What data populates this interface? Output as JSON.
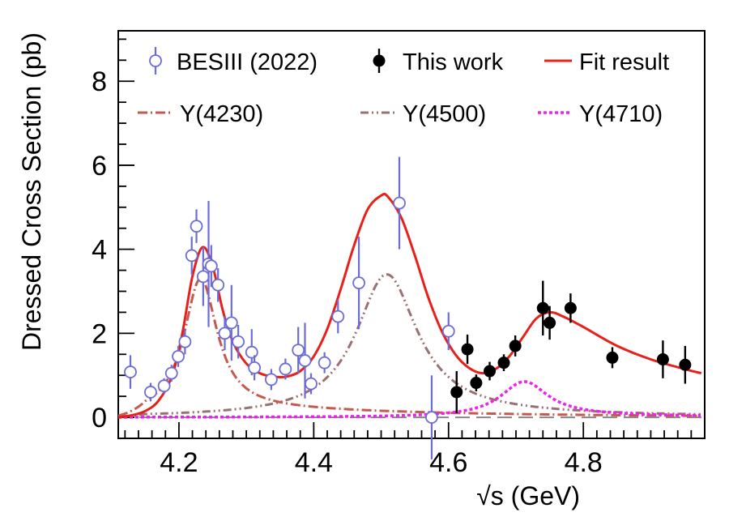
{
  "chart_data": {
    "type": "scatter",
    "title": "",
    "xlabel": "√s (GeV)",
    "ylabel": "Dressed Cross Section (pb)",
    "xlim": [
      4.11,
      4.98
    ],
    "ylim": [
      -0.5,
      9.2
    ],
    "x_ticks": [
      4.2,
      4.4,
      4.6,
      4.8
    ],
    "x_tick_labels": [
      "4.2",
      "4.4",
      "4.6",
      "4.8"
    ],
    "y_ticks": [
      0,
      2,
      4,
      6,
      8
    ],
    "y_tick_labels": [
      "0",
      "2",
      "4",
      "6",
      "8"
    ],
    "legend": {
      "placement": "top",
      "entries": [
        {
          "key": "besiii",
          "label": "BESIII (2022)"
        },
        {
          "key": "thiswork",
          "label": "This work"
        },
        {
          "key": "fit",
          "label": "Fit result"
        },
        {
          "key": "y4230",
          "label": "Y(4230)"
        },
        {
          "key": "y4500",
          "label": "Y(4500)"
        },
        {
          "key": "y4710",
          "label": "Y(4710)"
        }
      ]
    },
    "colors": {
      "besiii": "#6c6cd8",
      "thiswork": "#000000",
      "fit": "#e8201a",
      "y4230": "#c45a4e",
      "y4500": "#9a7070",
      "y4710": "#ee22ee",
      "zero_line": "#888888"
    },
    "points": {
      "besiii": [
        {
          "x": 4.128,
          "y": 1.08,
          "err": 0.4
        },
        {
          "x": 4.158,
          "y": 0.6,
          "err": 0.22
        },
        {
          "x": 4.178,
          "y": 0.75,
          "err": 0.18
        },
        {
          "x": 4.189,
          "y": 1.05,
          "err": 0.2
        },
        {
          "x": 4.199,
          "y": 1.45,
          "err": 0.25
        },
        {
          "x": 4.209,
          "y": 1.8,
          "err": 0.3
        },
        {
          "x": 4.219,
          "y": 3.85,
          "err": 0.45
        },
        {
          "x": 4.226,
          "y": 4.55,
          "err": 0.4
        },
        {
          "x": 4.236,
          "y": 3.35,
          "err": 0.7
        },
        {
          "x": 4.244,
          "y": 3.65,
          "err": 1.5
        },
        {
          "x": 4.248,
          "y": 3.6,
          "err": 0.5
        },
        {
          "x": 4.258,
          "y": 3.15,
          "err": 0.4
        },
        {
          "x": 4.268,
          "y": 2.0,
          "err": 0.4
        },
        {
          "x": 4.278,
          "y": 2.25,
          "err": 0.9
        },
        {
          "x": 4.288,
          "y": 1.8,
          "err": 0.4
        },
        {
          "x": 4.308,
          "y": 1.55,
          "err": 0.55
        },
        {
          "x": 4.312,
          "y": 1.18,
          "err": 0.3
        },
        {
          "x": 4.337,
          "y": 0.9,
          "err": 0.25
        },
        {
          "x": 4.358,
          "y": 1.15,
          "err": 0.25
        },
        {
          "x": 4.377,
          "y": 1.6,
          "err": 0.55
        },
        {
          "x": 4.387,
          "y": 1.35,
          "err": 0.9
        },
        {
          "x": 4.396,
          "y": 0.8,
          "err": 0.25
        },
        {
          "x": 4.416,
          "y": 1.3,
          "err": 0.25
        },
        {
          "x": 4.436,
          "y": 2.4,
          "err": 0.4
        },
        {
          "x": 4.467,
          "y": 3.2,
          "err": 1.1
        },
        {
          "x": 4.527,
          "y": 5.1,
          "err": 1.1
        },
        {
          "x": 4.575,
          "y": 0.0,
          "err": 1.0
        },
        {
          "x": 4.6,
          "y": 2.05,
          "err": 0.45
        }
      ],
      "thiswork": [
        {
          "x": 4.612,
          "y": 0.6,
          "err": 0.5
        },
        {
          "x": 4.628,
          "y": 1.62,
          "err": 0.35
        },
        {
          "x": 4.641,
          "y": 0.82,
          "err": 0.2
        },
        {
          "x": 4.661,
          "y": 1.1,
          "err": 0.22
        },
        {
          "x": 4.682,
          "y": 1.3,
          "err": 0.2
        },
        {
          "x": 4.699,
          "y": 1.7,
          "err": 0.25
        },
        {
          "x": 4.74,
          "y": 2.6,
          "err": 0.65
        },
        {
          "x": 4.75,
          "y": 2.25,
          "err": 0.4
        },
        {
          "x": 4.781,
          "y": 2.6,
          "err": 0.35
        },
        {
          "x": 4.843,
          "y": 1.42,
          "err": 0.25
        },
        {
          "x": 4.918,
          "y": 1.38,
          "err": 0.45
        },
        {
          "x": 4.951,
          "y": 1.25,
          "err": 0.45
        }
      ]
    },
    "curves": {
      "y4230": {
        "mass": 4.232,
        "width": 0.06,
        "peak": 3.3,
        "tail": 0.25
      },
      "y4500": {
        "mass": 4.508,
        "width": 0.11,
        "peak": 3.4,
        "tail": 0.1
      },
      "y4710": {
        "mass": 4.712,
        "width": 0.085,
        "peak": 0.85,
        "tail": 0.05
      },
      "fit": {
        "points": [
          [
            4.11,
            0.0
          ],
          [
            4.13,
            0.05
          ],
          [
            4.15,
            0.15
          ],
          [
            4.17,
            0.4
          ],
          [
            4.19,
            1.0
          ],
          [
            4.205,
            2.0
          ],
          [
            4.22,
            3.35
          ],
          [
            4.235,
            4.05
          ],
          [
            4.25,
            3.6
          ],
          [
            4.265,
            2.55
          ],
          [
            4.28,
            1.8
          ],
          [
            4.3,
            1.28
          ],
          [
            4.32,
            1.05
          ],
          [
            4.34,
            0.97
          ],
          [
            4.36,
            0.97
          ],
          [
            4.38,
            1.1
          ],
          [
            4.4,
            1.45
          ],
          [
            4.42,
            2.1
          ],
          [
            4.44,
            3.05
          ],
          [
            4.46,
            4.1
          ],
          [
            4.48,
            4.95
          ],
          [
            4.5,
            5.28
          ],
          [
            4.51,
            5.25
          ],
          [
            4.53,
            4.75
          ],
          [
            4.55,
            3.85
          ],
          [
            4.57,
            2.85
          ],
          [
            4.59,
            2.05
          ],
          [
            4.61,
            1.5
          ],
          [
            4.63,
            1.18
          ],
          [
            4.65,
            1.05
          ],
          [
            4.67,
            1.15
          ],
          [
            4.69,
            1.45
          ],
          [
            4.71,
            1.9
          ],
          [
            4.73,
            2.35
          ],
          [
            4.75,
            2.5
          ],
          [
            4.77,
            2.4
          ],
          [
            4.8,
            2.15
          ],
          [
            4.85,
            1.7
          ],
          [
            4.9,
            1.38
          ],
          [
            4.95,
            1.15
          ],
          [
            4.975,
            1.05
          ]
        ]
      }
    }
  }
}
